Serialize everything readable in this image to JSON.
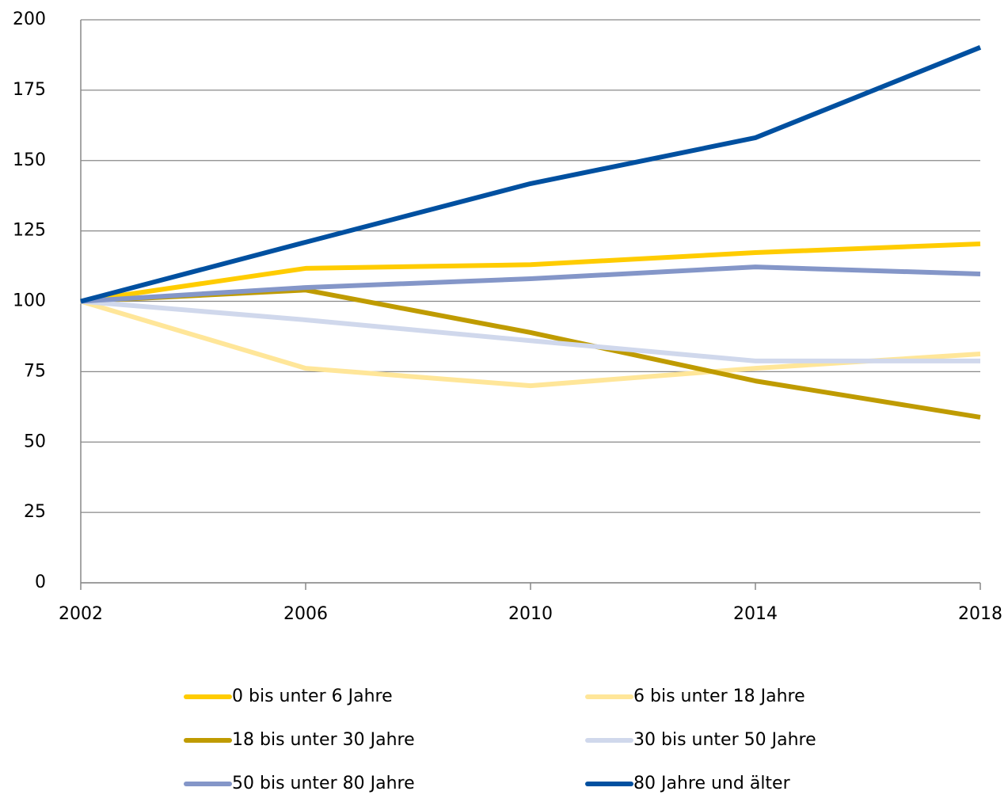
{
  "chart_data": {
    "type": "line",
    "x": [
      2002,
      2006,
      2010,
      2014,
      2018
    ],
    "xlim": [
      2002,
      2018
    ],
    "xticks": [
      2002,
      2006,
      2010,
      2014,
      2018
    ],
    "ylim": [
      0,
      200
    ],
    "yticks": [
      0,
      25,
      50,
      75,
      100,
      125,
      150,
      175,
      200
    ],
    "grid": true,
    "series": [
      {
        "name": "0 bis unter 6 Jahre",
        "color": "#ffcc00",
        "values": [
          100,
          111.7,
          113,
          117.3,
          120.4
        ]
      },
      {
        "name": "6 bis unter 18 Jahre",
        "color": "#ffe699",
        "values": [
          100,
          76.2,
          70,
          76.2,
          81.3
        ]
      },
      {
        "name": "18 bis unter 30 Jahre",
        "color": "#bf9b00",
        "values": [
          100,
          104,
          88.9,
          71.7,
          58.8
        ]
      },
      {
        "name": "30 bis unter 50 Jahre",
        "color": "#d0d8ec",
        "values": [
          100,
          93.4,
          86,
          78.8,
          78.8
        ]
      },
      {
        "name": "50 bis unter 80 Jahre",
        "color": "#8496c8",
        "values": [
          100,
          104.9,
          108,
          112.2,
          109.7
        ]
      },
      {
        "name": "80 Jahre und älter",
        "color": "#0050a0",
        "values": [
          100,
          121,
          141.8,
          158.1,
          190.2
        ]
      }
    ]
  }
}
